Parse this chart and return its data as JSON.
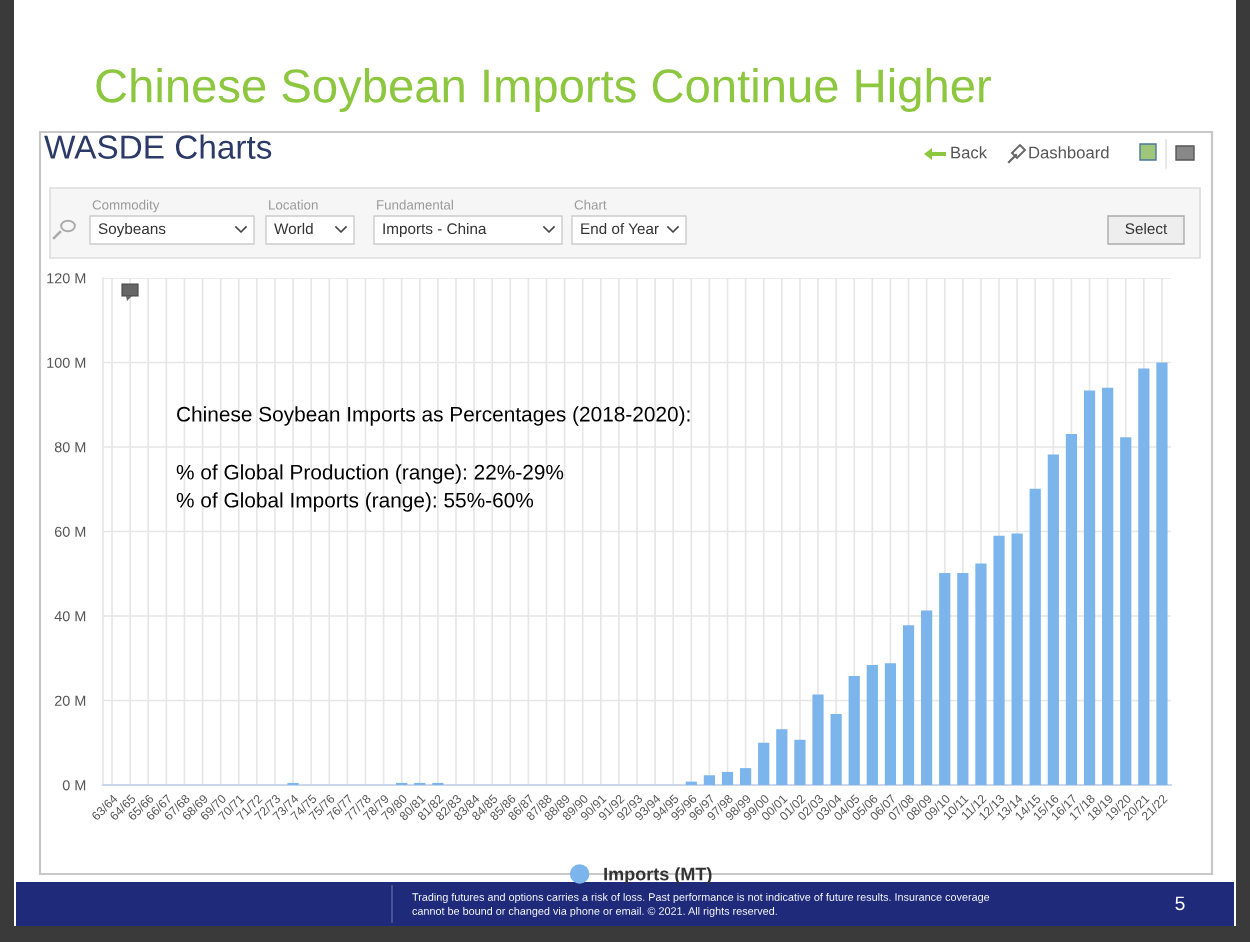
{
  "chart_data": {
    "type": "bar",
    "title": "Chinese Soybean Imports Continue Higher",
    "subtitle": "WASDE Charts",
    "categories": [
      "63/64",
      "64/65",
      "65/66",
      "66/67",
      "67/68",
      "68/69",
      "69/70",
      "70/71",
      "71/72",
      "72/73",
      "73/74",
      "74/75",
      "75/76",
      "76/77",
      "77/78",
      "78/79",
      "79/80",
      "80/81",
      "81/82",
      "82/83",
      "83/84",
      "84/85",
      "85/86",
      "86/87",
      "87/88",
      "88/89",
      "89/90",
      "90/91",
      "91/92",
      "92/93",
      "93/94",
      "94/95",
      "95/96",
      "96/97",
      "97/98",
      "98/99",
      "99/00",
      "00/01",
      "01/02",
      "02/03",
      "03/04",
      "04/05",
      "05/06",
      "06/07",
      "07/08",
      "08/09",
      "09/10",
      "10/11",
      "11/12",
      "12/13",
      "13/14",
      "14/15",
      "15/16",
      "16/17",
      "17/18",
      "18/19",
      "19/20",
      "20/21",
      "21/22"
    ],
    "series": [
      {
        "name": "Imports (MT)",
        "color": "#7cb5ec",
        "values": [
          0,
          0,
          0,
          0,
          0,
          0,
          0,
          0,
          0,
          0,
          0.5,
          0,
          0,
          0,
          0,
          0,
          0.5,
          0.5,
          0.5,
          0,
          0,
          0,
          0,
          0,
          0,
          0,
          0,
          0,
          0,
          0,
          0,
          0,
          0.8,
          2.3,
          3.1,
          4.0,
          10.0,
          13.2,
          10.7,
          21.4,
          16.8,
          25.8,
          28.4,
          28.8,
          37.8,
          41.3,
          50.2,
          50.2,
          52.4,
          59.0,
          59.5,
          70.1,
          78.2,
          83.1,
          93.4,
          94.0,
          82.3,
          98.6,
          100.0
        ]
      }
    ],
    "ylim": [
      0,
      120
    ],
    "yticks": [
      {
        "value": 0,
        "label": "0 M"
      },
      {
        "value": 20,
        "label": "20 M"
      },
      {
        "value": 40,
        "label": "40 M"
      },
      {
        "value": 60,
        "label": "60 M"
      },
      {
        "value": 80,
        "label": "80 M"
      },
      {
        "value": 100,
        "label": "100 M"
      },
      {
        "value": 120,
        "label": "120 M"
      }
    ],
    "grid": true,
    "legend": "bottom",
    "annotations": [
      "Chinese Soybean Imports as Percentages (2018-2020):",
      "% of Global Production (range): 22%-29%",
      "% of Global Imports (range): 55%-60%",
      "Back",
      "Dashboard",
      "Commodity",
      "Soybeans",
      "Location",
      "World",
      "Fundamental",
      "Imports - China",
      "Chart",
      "End of Year",
      "Select",
      "Trading futures and options carries a risk of loss. Past performance is not indicative of future results. Insurance coverage",
      "cannot be bound or changed via phone or email. © 2021. All rights reserved.",
      "5"
    ]
  }
}
